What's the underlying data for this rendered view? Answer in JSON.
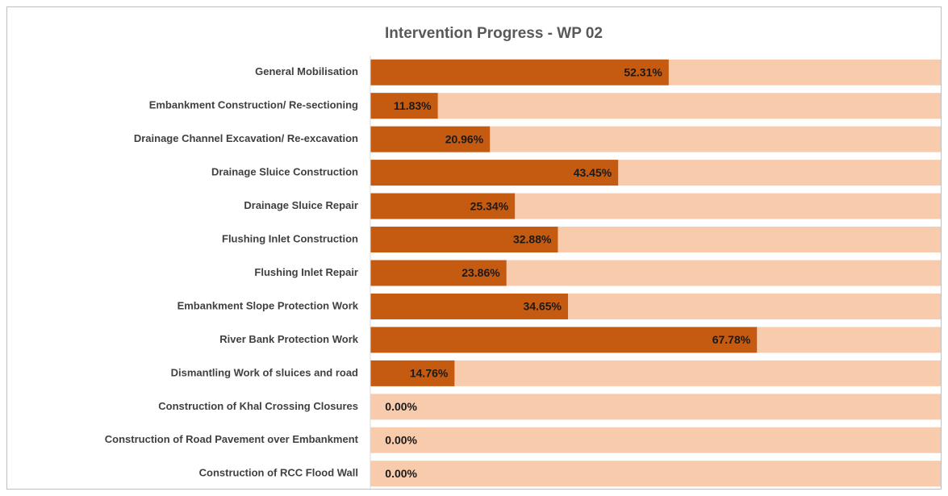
{
  "chart_data": {
    "type": "bar",
    "orientation": "horizontal",
    "title": "Intervention Progress - WP 02",
    "categories": [
      "General Mobilisation",
      "Embankment Construction/ Re-sectioning",
      "Drainage Channel Excavation/ Re-excavation",
      "Drainage Sluice Construction",
      "Drainage Sluice Repair",
      "Flushing Inlet Construction",
      "Flushing Inlet Repair",
      "Embankment Slope Protection Work",
      "River Bank Protection Work",
      "Dismantling Work of sluices and road",
      "Construction of Khal Crossing Closures",
      "Construction of Road Pavement over Embankment",
      "Construction of RCC Flood Wall"
    ],
    "values": [
      52.31,
      11.83,
      20.96,
      43.45,
      25.34,
      32.88,
      23.86,
      34.65,
      67.78,
      14.76,
      0,
      0,
      0
    ],
    "value_labels": [
      "52.31%",
      "11.83%",
      "20.96%",
      "43.45%",
      "25.34%",
      "32.88%",
      "23.86%",
      "34.65%",
      "67.78%",
      "14.76%",
      "0.00%",
      "0.00%",
      "0.00%"
    ],
    "color": "#c55a11",
    "background_color": "#f8cbad",
    "xlim": [
      0,
      100
    ]
  }
}
